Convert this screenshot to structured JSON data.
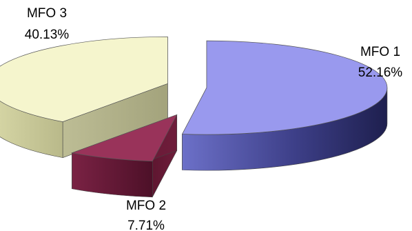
{
  "chart_data": {
    "type": "pie",
    "style": "3d-exploded",
    "title": "",
    "slices": [
      {
        "label": "MFO 1",
        "value": 52.16,
        "value_text": "52.16%",
        "color": "#9999ee"
      },
      {
        "label": "MFO 2",
        "value": 7.71,
        "value_text": "7.71%",
        "color": "#99335a"
      },
      {
        "label": "MFO 3",
        "value": 40.13,
        "value_text": "40.13%",
        "color": "#f5f5cd"
      }
    ],
    "legend": "none",
    "data_labels": "outside"
  }
}
